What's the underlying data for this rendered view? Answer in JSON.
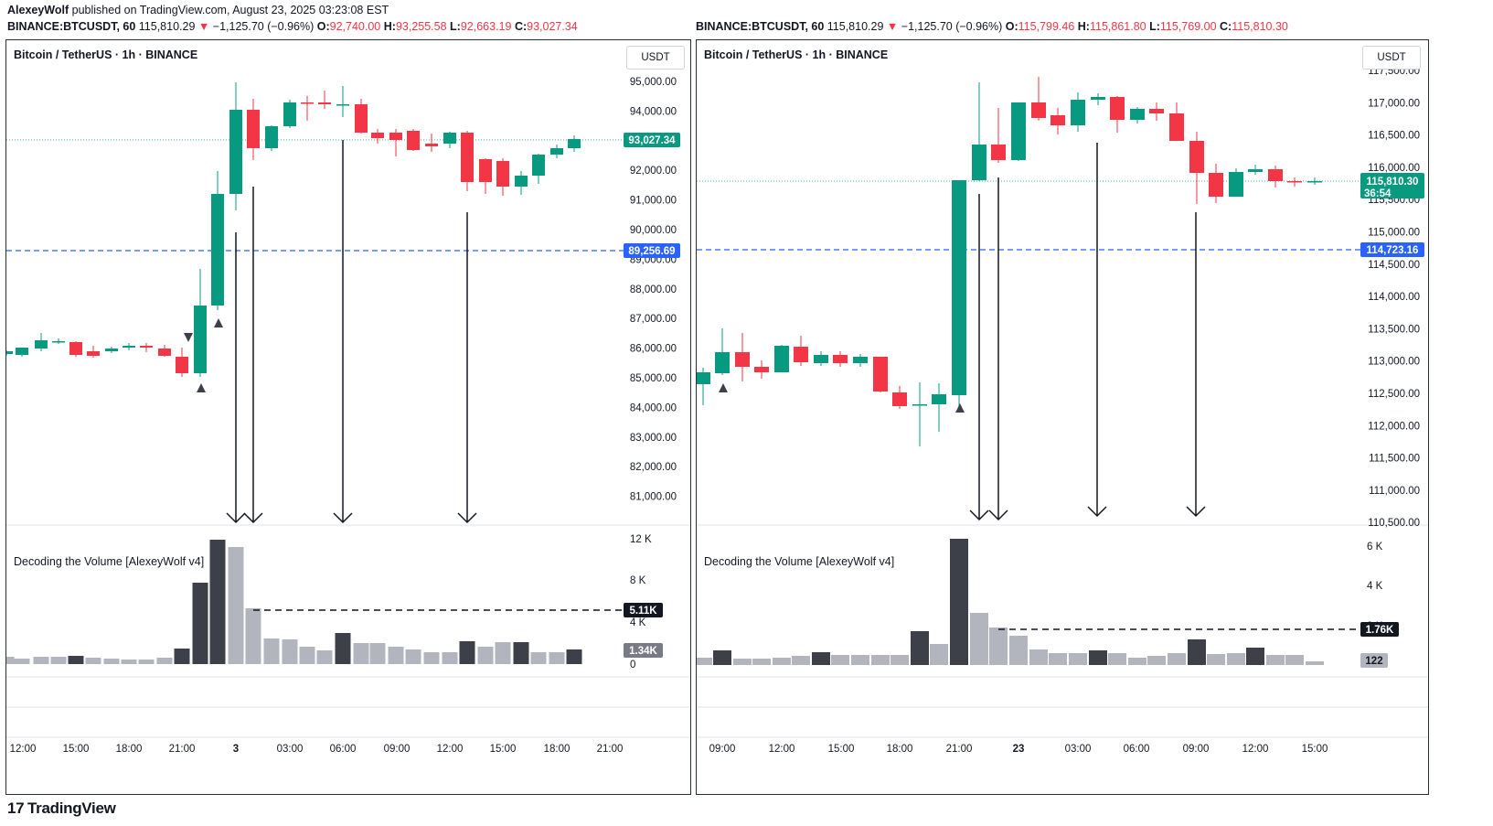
{
  "header": {
    "author": "AlexeyWolf",
    "published_text": " published on TradingView.com, August 23, 2025 03:23:08 EST",
    "left_symbol": "BINANCE:BTCUSDT, 60",
    "left_price": "115,810.29",
    "left_change": "−1,125.70 (−0.96%)",
    "left_o": "92,740.00",
    "left_h": "93,255.58",
    "left_l": "92,663.19",
    "left_c": "93,027.34",
    "right_symbol": "BINANCE:BTCUSDT, 60",
    "right_price": "115,810.29",
    "right_change": "−1,125.70 (−0.96%)",
    "right_o": "115,799.46",
    "right_h": "115,861.80",
    "right_l": "115,769.00",
    "right_c": "115,810.30",
    "label_o": "O:",
    "label_h": "H:",
    "label_l": "L:",
    "label_c": "C:",
    "arrow_down": "▼"
  },
  "colors": {
    "up": "#089981",
    "down": "#f23645",
    "blue": "#2962ff",
    "dark_volume": "#3d4048",
    "light_volume": "#b2b5be"
  },
  "left_chart": {
    "title": "Bitcoin / TetherUS · 1h · BINANCE",
    "unit": "USDT",
    "indicator_title": "Decoding the Volume [AlexeyWolf v4]",
    "price_ticks": [
      "95,000.00",
      "94,000.00",
      "93,000.00",
      "92,000.00",
      "91,000.00",
      "90,000.00",
      "89,000.00",
      "88,000.00",
      "87,000.00",
      "86,000.00",
      "85,000.00",
      "84,000.00",
      "83,000.00",
      "82,000.00",
      "81,000.00"
    ],
    "volume_ticks": [
      "12 K",
      "8 K",
      "4 K",
      "0"
    ],
    "time_ticks": [
      "12:00",
      "15:00",
      "18:00",
      "21:00",
      "3",
      "03:00",
      "06:00",
      "09:00",
      "12:00",
      "15:00",
      "18:00",
      "21:00"
    ],
    "current_price_label": "93,027.34",
    "level_label": "89,256.69",
    "volume_level_label": "5.11K",
    "volume_last_label": "1.34K"
  },
  "right_chart": {
    "title": "Bitcoin / TetherUS · 1h · BINANCE",
    "unit": "USDT",
    "indicator_title": "Decoding the Volume [AlexeyWolf v4]",
    "price_ticks": [
      "117,500.00",
      "117,000.00",
      "116,500.00",
      "116,000.00",
      "115,500.00",
      "115,000.00",
      "114,500.00",
      "114,000.00",
      "113,500.00",
      "113,000.00",
      "112,500.00",
      "112,000.00",
      "111,500.00",
      "111,000.00",
      "110,500.00"
    ],
    "volume_ticks": [
      "6 K",
      "4 K",
      "2 K"
    ],
    "time_ticks": [
      "09:00",
      "12:00",
      "15:00",
      "18:00",
      "21:00",
      "23",
      "03:00",
      "06:00",
      "09:00",
      "12:00",
      "15:00"
    ],
    "current_price_label": "115,810.30",
    "countdown_label": "36:54",
    "level_label": "114,723.16",
    "volume_level_label": "1.76K",
    "volume_last_label": "122"
  },
  "footer": {
    "brand": "TradingView",
    "brand_mark": "17"
  }
}
